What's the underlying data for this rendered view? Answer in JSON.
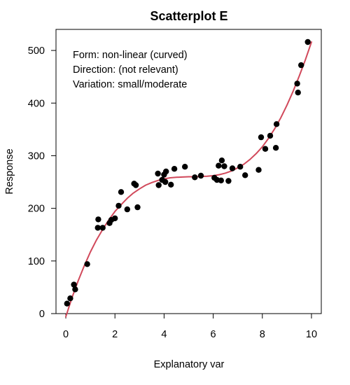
{
  "chart_data": {
    "type": "scatter",
    "title": "Scatterplot E",
    "xlabel": "Explanatory var",
    "ylabel": "Response",
    "xlim": [
      -0.4,
      10.4
    ],
    "ylim": [
      0,
      540
    ],
    "xticks": [
      0,
      2,
      4,
      6,
      8,
      10
    ],
    "yticks": [
      0,
      100,
      200,
      300,
      400,
      500
    ],
    "xtick_labels": [
      "0",
      "2",
      "4",
      "6",
      "8",
      "10"
    ],
    "ytick_labels": [
      "0",
      "100",
      "200",
      "300",
      "400",
      "500"
    ],
    "grid": false,
    "annotations": [
      "Form: non-linear (curved)",
      "Direction: (not relevant)",
      "Variation: small/moderate"
    ],
    "series": [
      {
        "type": "scatter",
        "color": "#000000",
        "points": [
          {
            "x": 0.05,
            "y": 19
          },
          {
            "x": 0.18,
            "y": 29
          },
          {
            "x": 0.33,
            "y": 55
          },
          {
            "x": 0.38,
            "y": 46
          },
          {
            "x": 0.87,
            "y": 94
          },
          {
            "x": 1.3,
            "y": 163
          },
          {
            "x": 1.32,
            "y": 179
          },
          {
            "x": 1.5,
            "y": 163
          },
          {
            "x": 1.78,
            "y": 172
          },
          {
            "x": 1.85,
            "y": 178
          },
          {
            "x": 2.0,
            "y": 181
          },
          {
            "x": 2.15,
            "y": 205
          },
          {
            "x": 2.25,
            "y": 231
          },
          {
            "x": 2.5,
            "y": 198
          },
          {
            "x": 2.78,
            "y": 247
          },
          {
            "x": 2.85,
            "y": 244
          },
          {
            "x": 2.92,
            "y": 202
          },
          {
            "x": 3.75,
            "y": 266
          },
          {
            "x": 3.78,
            "y": 244
          },
          {
            "x": 3.92,
            "y": 254
          },
          {
            "x": 4.0,
            "y": 264
          },
          {
            "x": 4.05,
            "y": 250
          },
          {
            "x": 4.08,
            "y": 270
          },
          {
            "x": 4.28,
            "y": 245
          },
          {
            "x": 4.42,
            "y": 275
          },
          {
            "x": 4.85,
            "y": 279
          },
          {
            "x": 5.25,
            "y": 259
          },
          {
            "x": 5.5,
            "y": 262
          },
          {
            "x": 6.05,
            "y": 258
          },
          {
            "x": 6.15,
            "y": 254
          },
          {
            "x": 6.22,
            "y": 281
          },
          {
            "x": 6.32,
            "y": 253
          },
          {
            "x": 6.35,
            "y": 291
          },
          {
            "x": 6.45,
            "y": 280
          },
          {
            "x": 6.62,
            "y": 252
          },
          {
            "x": 6.78,
            "y": 276
          },
          {
            "x": 7.1,
            "y": 279
          },
          {
            "x": 7.3,
            "y": 263
          },
          {
            "x": 7.85,
            "y": 273
          },
          {
            "x": 7.95,
            "y": 335
          },
          {
            "x": 8.12,
            "y": 313
          },
          {
            "x": 8.32,
            "y": 338
          },
          {
            "x": 8.55,
            "y": 315
          },
          {
            "x": 8.58,
            "y": 360
          },
          {
            "x": 9.42,
            "y": 437
          },
          {
            "x": 9.45,
            "y": 420
          },
          {
            "x": 9.58,
            "y": 472
          },
          {
            "x": 9.85,
            "y": 516
          }
        ]
      },
      {
        "type": "line",
        "color": "#D1495B",
        "points": [
          {
            "x": 0.0,
            "y": -6
          },
          {
            "x": 0.25,
            "y": 30
          },
          {
            "x": 0.5,
            "y": 62
          },
          {
            "x": 0.75,
            "y": 91
          },
          {
            "x": 1.0,
            "y": 117
          },
          {
            "x": 1.25,
            "y": 140
          },
          {
            "x": 1.5,
            "y": 160
          },
          {
            "x": 1.75,
            "y": 178
          },
          {
            "x": 2.0,
            "y": 194
          },
          {
            "x": 2.25,
            "y": 207
          },
          {
            "x": 2.5,
            "y": 219
          },
          {
            "x": 2.75,
            "y": 229
          },
          {
            "x": 3.0,
            "y": 237
          },
          {
            "x": 3.25,
            "y": 244
          },
          {
            "x": 3.5,
            "y": 249
          },
          {
            "x": 3.75,
            "y": 253
          },
          {
            "x": 4.0,
            "y": 256
          },
          {
            "x": 4.25,
            "y": 258
          },
          {
            "x": 4.5,
            "y": 259
          },
          {
            "x": 4.75,
            "y": 259.5
          },
          {
            "x": 5.0,
            "y": 260
          },
          {
            "x": 5.25,
            "y": 260
          },
          {
            "x": 5.5,
            "y": 260.5
          },
          {
            "x": 5.75,
            "y": 261
          },
          {
            "x": 6.0,
            "y": 262
          },
          {
            "x": 6.25,
            "y": 264
          },
          {
            "x": 6.5,
            "y": 267
          },
          {
            "x": 6.75,
            "y": 271
          },
          {
            "x": 7.0,
            "y": 277
          },
          {
            "x": 7.25,
            "y": 284
          },
          {
            "x": 7.5,
            "y": 293
          },
          {
            "x": 7.75,
            "y": 304
          },
          {
            "x": 8.0,
            "y": 317
          },
          {
            "x": 8.25,
            "y": 333
          },
          {
            "x": 8.5,
            "y": 351
          },
          {
            "x": 8.75,
            "y": 372
          },
          {
            "x": 9.0,
            "y": 396
          },
          {
            "x": 9.25,
            "y": 422
          },
          {
            "x": 9.5,
            "y": 451
          },
          {
            "x": 9.75,
            "y": 482
          },
          {
            "x": 10.0,
            "y": 516
          }
        ]
      }
    ]
  }
}
